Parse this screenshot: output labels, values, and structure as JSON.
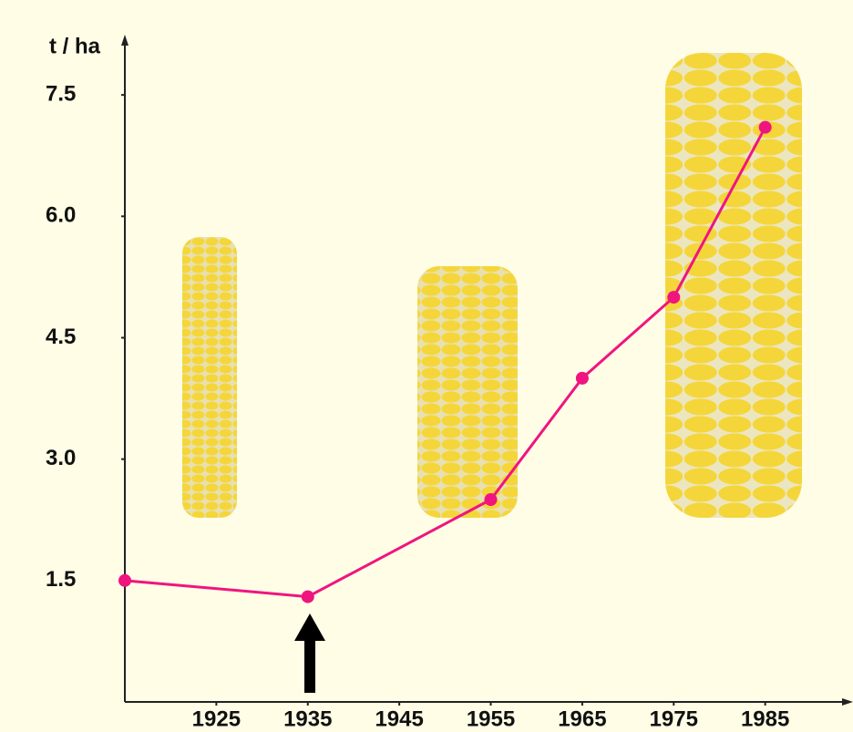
{
  "chart_data": {
    "type": "line",
    "y_label": "t / ha",
    "x": [
      1915,
      1935,
      1955,
      1965,
      1975,
      1985
    ],
    "series": [
      {
        "color": "#f0147f",
        "values": [
          1.5,
          1.3,
          2.5,
          4.0,
          5.0,
          7.1
        ]
      }
    ],
    "xlim": [
      1915,
      1994
    ],
    "xticks": [
      1925,
      1935,
      1945,
      1955,
      1965,
      1975,
      1985
    ],
    "ylim": [
      0,
      8.2
    ],
    "yticks": [
      1.5,
      {
        "value": 3.0,
        "label": "3.0"
      },
      4.5,
      {
        "value": 6.0,
        "label": "6.0"
      },
      7.5
    ],
    "grid": false
  }
}
